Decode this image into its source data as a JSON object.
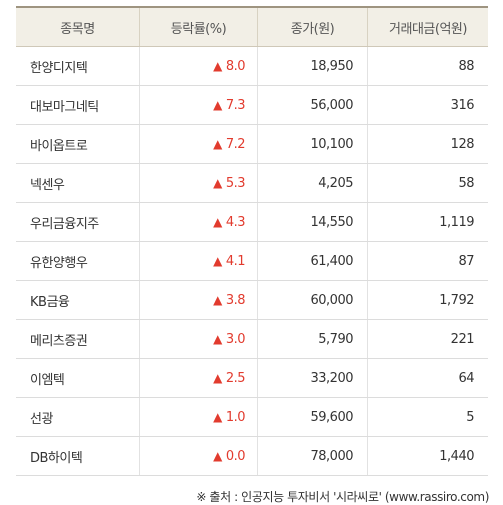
{
  "header": {
    "name": "종목명",
    "change": "등락률(%)",
    "price": "종가(원)",
    "volume": "거래대금(억원)"
  },
  "rows": [
    {
      "name": "한양디지텍",
      "arrow": "▲",
      "change": "8.0",
      "price": "18,950",
      "volume": "88"
    },
    {
      "name": "대보마그네틱",
      "arrow": "▲",
      "change": "7.3",
      "price": "56,000",
      "volume": "316"
    },
    {
      "name": "바이옵트로",
      "arrow": "▲",
      "change": "7.2",
      "price": "10,100",
      "volume": "128"
    },
    {
      "name": "넥센우",
      "arrow": "▲",
      "change": "5.3",
      "price": "4,205",
      "volume": "58"
    },
    {
      "name": "우리금융지주",
      "arrow": "▲",
      "change": "4.3",
      "price": "14,550",
      "volume": "1,119"
    },
    {
      "name": "유한양행우",
      "arrow": "▲",
      "change": "4.1",
      "price": "61,400",
      "volume": "87"
    },
    {
      "name": "KB금융",
      "arrow": "▲",
      "change": "3.8",
      "price": "60,000",
      "volume": "1,792"
    },
    {
      "name": "메리츠증권",
      "arrow": "▲",
      "change": "3.0",
      "price": "5,790",
      "volume": "221"
    },
    {
      "name": "이엠텍",
      "arrow": "▲",
      "change": "2.5",
      "price": "33,200",
      "volume": "64"
    },
    {
      "name": "선광",
      "arrow": "▲",
      "change": "1.0",
      "price": "59,600",
      "volume": "5"
    },
    {
      "name": "DB하이텍",
      "arrow": "▲",
      "change": "0.0",
      "price": "78,000",
      "volume": "1,440"
    }
  ],
  "source": "※ 출처 : 인공지능 투자비서 '시라씨로' (www.rassiro.com)",
  "colors": {
    "up": "#e23b2e",
    "header_bg": "#f2efe6"
  }
}
